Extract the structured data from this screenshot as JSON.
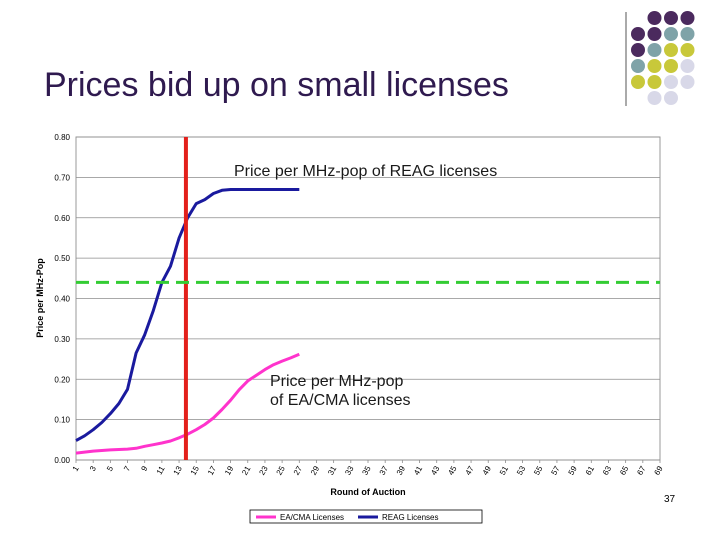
{
  "slide": {
    "title": "Prices bid up on small licenses",
    "page_number": "37",
    "annotation_reag": "Price per MHz-pop of REAG licenses",
    "annotation_ea_line1": "Price per MHz-pop",
    "annotation_ea_line2": "of EA/CMA licenses",
    "colors": {
      "title": "#2f1a4f",
      "dot_purple": "#4b2a5e",
      "dot_teal": "#7fa3a8",
      "dot_yellow": "#c8c83a",
      "dot_lavender": "#d8d8e8"
    }
  },
  "chart_data": {
    "type": "line",
    "xlabel": "Round of Auction",
    "ylabel": "Price per MHz-Pop",
    "xlim": [
      1,
      69
    ],
    "ylim": [
      0,
      0.8
    ],
    "x_ticks": [
      1,
      3,
      5,
      7,
      9,
      11,
      13,
      15,
      17,
      19,
      21,
      23,
      25,
      27,
      29,
      31,
      33,
      35,
      37,
      39,
      41,
      43,
      45,
      47,
      49,
      51,
      53,
      55,
      57,
      59,
      61,
      63,
      65,
      67,
      69
    ],
    "y_ticks": [
      "0.00",
      "0.10",
      "0.20",
      "0.30",
      "0.40",
      "0.50",
      "0.60",
      "0.70",
      "0.80"
    ],
    "grid": "horizontal",
    "legend_placement": "bottom",
    "series": [
      {
        "name": "EA/CMA Licenses",
        "color": "#ff33cc",
        "x": [
          1,
          3,
          5,
          7,
          8,
          9,
          10,
          11,
          12,
          13,
          14,
          15,
          16,
          17,
          18,
          19,
          20,
          21,
          22,
          23,
          24,
          25,
          26,
          27
        ],
        "values": [
          0.017,
          0.022,
          0.025,
          0.027,
          0.029,
          0.034,
          0.038,
          0.042,
          0.047,
          0.055,
          0.064,
          0.075,
          0.088,
          0.104,
          0.125,
          0.148,
          0.174,
          0.196,
          0.21,
          0.224,
          0.236,
          0.245,
          0.253,
          0.262
        ]
      },
      {
        "name": "REAG Licenses",
        "color": "#1a1a9e",
        "x": [
          1,
          2,
          3,
          4,
          5,
          6,
          7,
          8,
          9,
          10,
          11,
          12,
          13,
          14,
          15,
          16,
          17,
          18,
          19,
          20,
          21,
          22,
          23,
          24,
          25,
          26,
          27
        ],
        "values": [
          0.048,
          0.06,
          0.075,
          0.093,
          0.115,
          0.14,
          0.175,
          0.265,
          0.31,
          0.37,
          0.44,
          0.48,
          0.55,
          0.6,
          0.635,
          0.645,
          0.66,
          0.668,
          0.67,
          0.67,
          0.67,
          0.67,
          0.67,
          0.67,
          0.67,
          0.67,
          0.67
        ]
      }
    ],
    "reference_lines": [
      {
        "orientation": "vertical",
        "x": 13.8,
        "color": "#e3201b"
      },
      {
        "orientation": "horizontal",
        "y": 0.44,
        "color": "#33cc33",
        "style": "dashed"
      }
    ]
  }
}
